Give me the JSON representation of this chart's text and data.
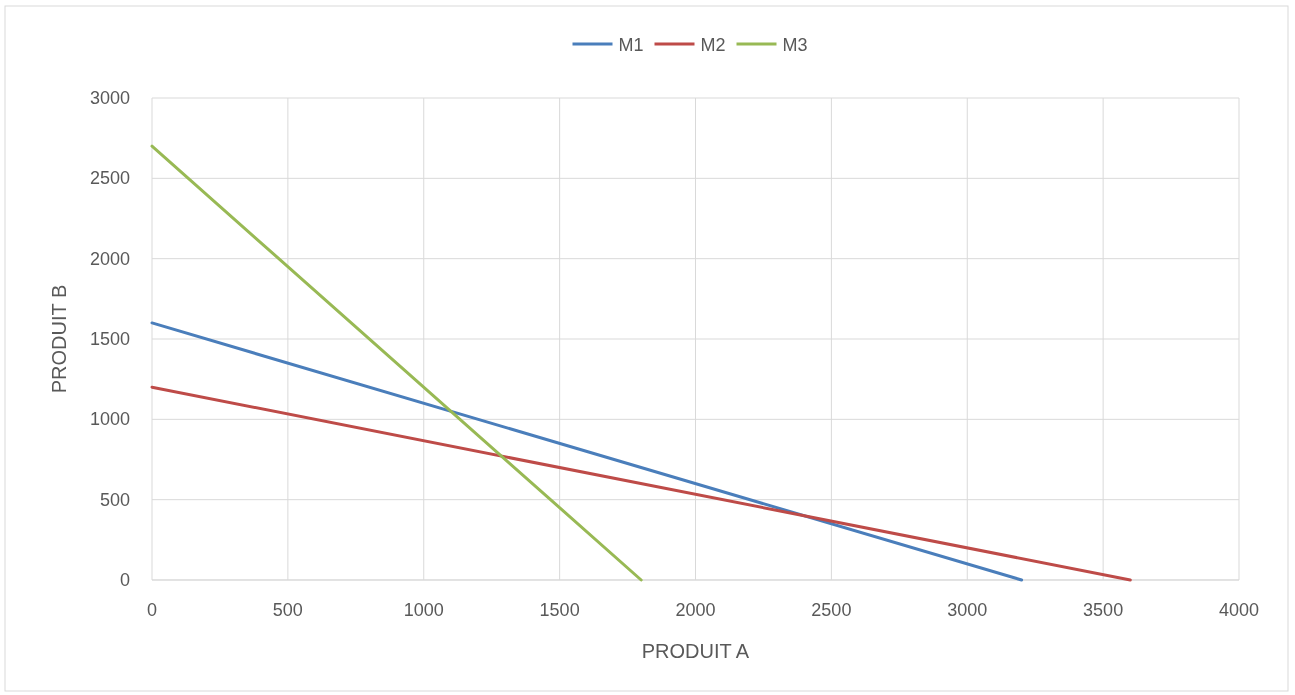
{
  "chart_data": {
    "type": "line",
    "xlabel": "PRODUIT A",
    "ylabel": "PRODUIT B",
    "xlim": [
      0,
      4000
    ],
    "xticks": [
      0,
      500,
      1000,
      1500,
      2000,
      2500,
      3000,
      3500,
      4000
    ],
    "ylim": [
      0,
      3000
    ],
    "yticks": [
      0,
      500,
      1000,
      1500,
      2000,
      2500,
      3000
    ],
    "grid": true,
    "legend": "top",
    "marker": "none",
    "line_style": "solid",
    "series": [
      {
        "name": "M1",
        "color": "#4a7ebb",
        "x": [
          0,
          3200
        ],
        "values": [
          1600,
          0
        ]
      },
      {
        "name": "M2",
        "color": "#be4b48",
        "x": [
          0,
          3600
        ],
        "values": [
          1200,
          0
        ]
      },
      {
        "name": "M3",
        "color": "#98b954",
        "x": [
          0,
          1800
        ],
        "values": [
          2700,
          0
        ]
      }
    ]
  }
}
